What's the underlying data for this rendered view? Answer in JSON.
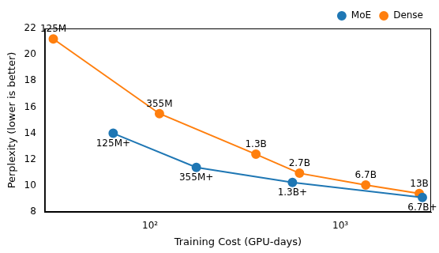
{
  "chart_data": {
    "type": "line",
    "x_label": "Training Cost (GPU-days)",
    "y_label": "Perplexity (lower is better)",
    "log": "x",
    "grid": false,
    "legend": "upper right",
    "xlim": [
      28,
      3000
    ],
    "xticks": [
      {
        "value": 100,
        "label": "10²"
      },
      {
        "value": 1000,
        "label": "10³"
      }
    ],
    "ylim": [
      8,
      22
    ],
    "yticks": [
      8,
      10,
      12,
      14,
      16,
      18,
      20,
      22
    ],
    "series": [
      {
        "name": "MoE",
        "color": "#1f77b4",
        "marker": "circle",
        "x": [
          64,
          175,
          560,
          2700
        ],
        "values": [
          14.0,
          11.4,
          10.25,
          9.1
        ],
        "labels": [
          "125M+",
          "355M+",
          "1.3B+",
          "6.7B+"
        ]
      },
      {
        "name": "Dense",
        "color": "#ff7f0e",
        "marker": "circle",
        "x": [
          31,
          112,
          360,
          610,
          1360,
          2600
        ],
        "values": [
          21.2,
          15.5,
          12.4,
          10.95,
          10.05,
          9.4
        ],
        "labels": [
          "125M",
          "355M",
          "1.3B",
          "2.7B",
          "6.7B",
          "13B"
        ]
      }
    ]
  }
}
